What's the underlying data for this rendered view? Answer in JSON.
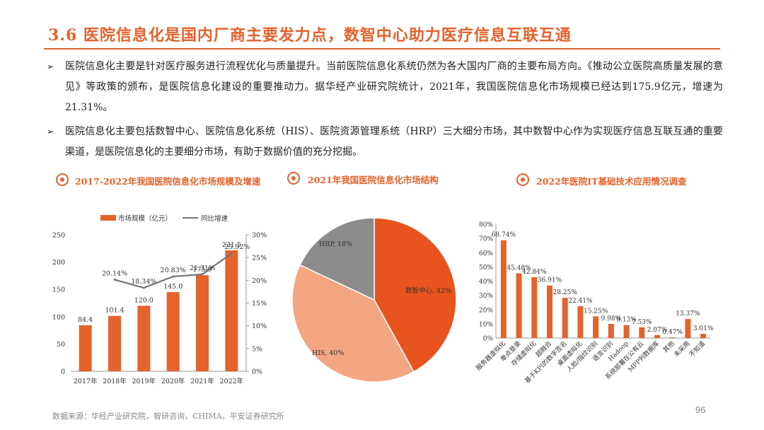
{
  "title": "3.6 医院信息化是国内厂商主要发力点，数智中心助力医疗信息互联互通",
  "bullets": [
    {
      "marker": "➢",
      "text": "医院信息化主要是针对医疗服务进行流程优化与质量提升。当前医院信息化系统仍然为各大国内厂商的主要布局方向。《推动公立医院高质量发展的意见》等政策的颁布，是医院信息化建设的重要推动力。据华经产业研究院统计，2021年，我国医院信息化市场规模已经达到175.9亿元，增速为21.31%。"
    },
    {
      "marker": "➢",
      "text": "医院信息化主要包括数智中心、医院信息化系统（HIS）、医院资源管理系统（HRP）三大细分市场，其中数智中心作为实现医疗信息互联互通的重要渠道，是医院信息化的主要细分市场，有助于数据价值的充分挖掘。"
    }
  ],
  "sections": [
    "2017-2022年我国医院信息化市场规模及增速",
    "2021年我国医院信息化市场结构",
    "2022年医院IT基础技术应用情况调查"
  ],
  "colors": {
    "accent": "#E5622B",
    "line": "#757575",
    "pie": [
      "#E8541E",
      "#F4A582",
      "#8C8C8C"
    ]
  },
  "chart_data": [
    {
      "type": "bar+line",
      "categories": [
        "2017年",
        "2018年",
        "2019年",
        "2020年",
        "2021年",
        "2022年"
      ],
      "series": [
        {
          "name": "市场规模（亿元）",
          "type": "bar",
          "axis": "left",
          "values": [
            84.4,
            101.4,
            120.0,
            145.0,
            175.9,
            221.5
          ],
          "labels": [
            "84.4",
            "101.4",
            "120.0",
            "145.0",
            "175.9",
            "221.5"
          ]
        },
        {
          "name": "同比增速",
          "type": "line",
          "axis": "right",
          "values": [
            null,
            20.14,
            18.34,
            20.83,
            21.31,
            25.92
          ],
          "labels": [
            "",
            "20.14%",
            "18.34%",
            "20.83%",
            "21.31%",
            "25.92%"
          ]
        }
      ],
      "ylim_left": [
        0,
        250
      ],
      "yticks_left": [
        "0",
        "50",
        "100",
        "150",
        "200",
        "250"
      ],
      "ylim_right": [
        0,
        30
      ],
      "yticks_right": [
        "0%",
        "5%",
        "10%",
        "15%",
        "20%",
        "25%",
        "30%"
      ],
      "legend": "top"
    },
    {
      "type": "pie",
      "slices": [
        {
          "label": "数智中心, 42%",
          "value": 42
        },
        {
          "label": "HIS, 40%",
          "value": 40
        },
        {
          "label": "HRP, 18%",
          "value": 18
        }
      ]
    },
    {
      "type": "bar",
      "categories": [
        "服务器虚拟化",
        "单点登录",
        "存储虚拟化",
        "超融合",
        "基于KPI的数字签名",
        "桌面虚拟化",
        "人脸/指纹识别",
        "语言识别",
        "Hadoop",
        "系统部署在公有云",
        "MPP列数据库",
        "其他",
        "未采用",
        "不知道"
      ],
      "values": [
        68.74,
        45.48,
        42.84,
        36.91,
        28.25,
        22.41,
        15.25,
        9.98,
        9.13,
        7.53,
        2.07,
        0.47,
        13.37,
        3.01
      ],
      "labels": [
        "68.74%",
        "45.48%",
        "42.84%",
        "36.91%",
        "28.25%",
        "22.41%",
        "15.25%",
        "9.98%",
        "9.13%",
        "7.53%",
        "2.07%",
        "0.47%",
        "13.37%",
        "3.01%"
      ],
      "ylim": [
        0,
        80
      ],
      "yticks": [
        "0%",
        "10%",
        "20%",
        "30%",
        "40%",
        "50%",
        "60%",
        "70%",
        "80%"
      ]
    }
  ],
  "source": "数据来源：华经产业研究院，智研咨询，CHIMA，平安证券研究所",
  "page_number": "96"
}
